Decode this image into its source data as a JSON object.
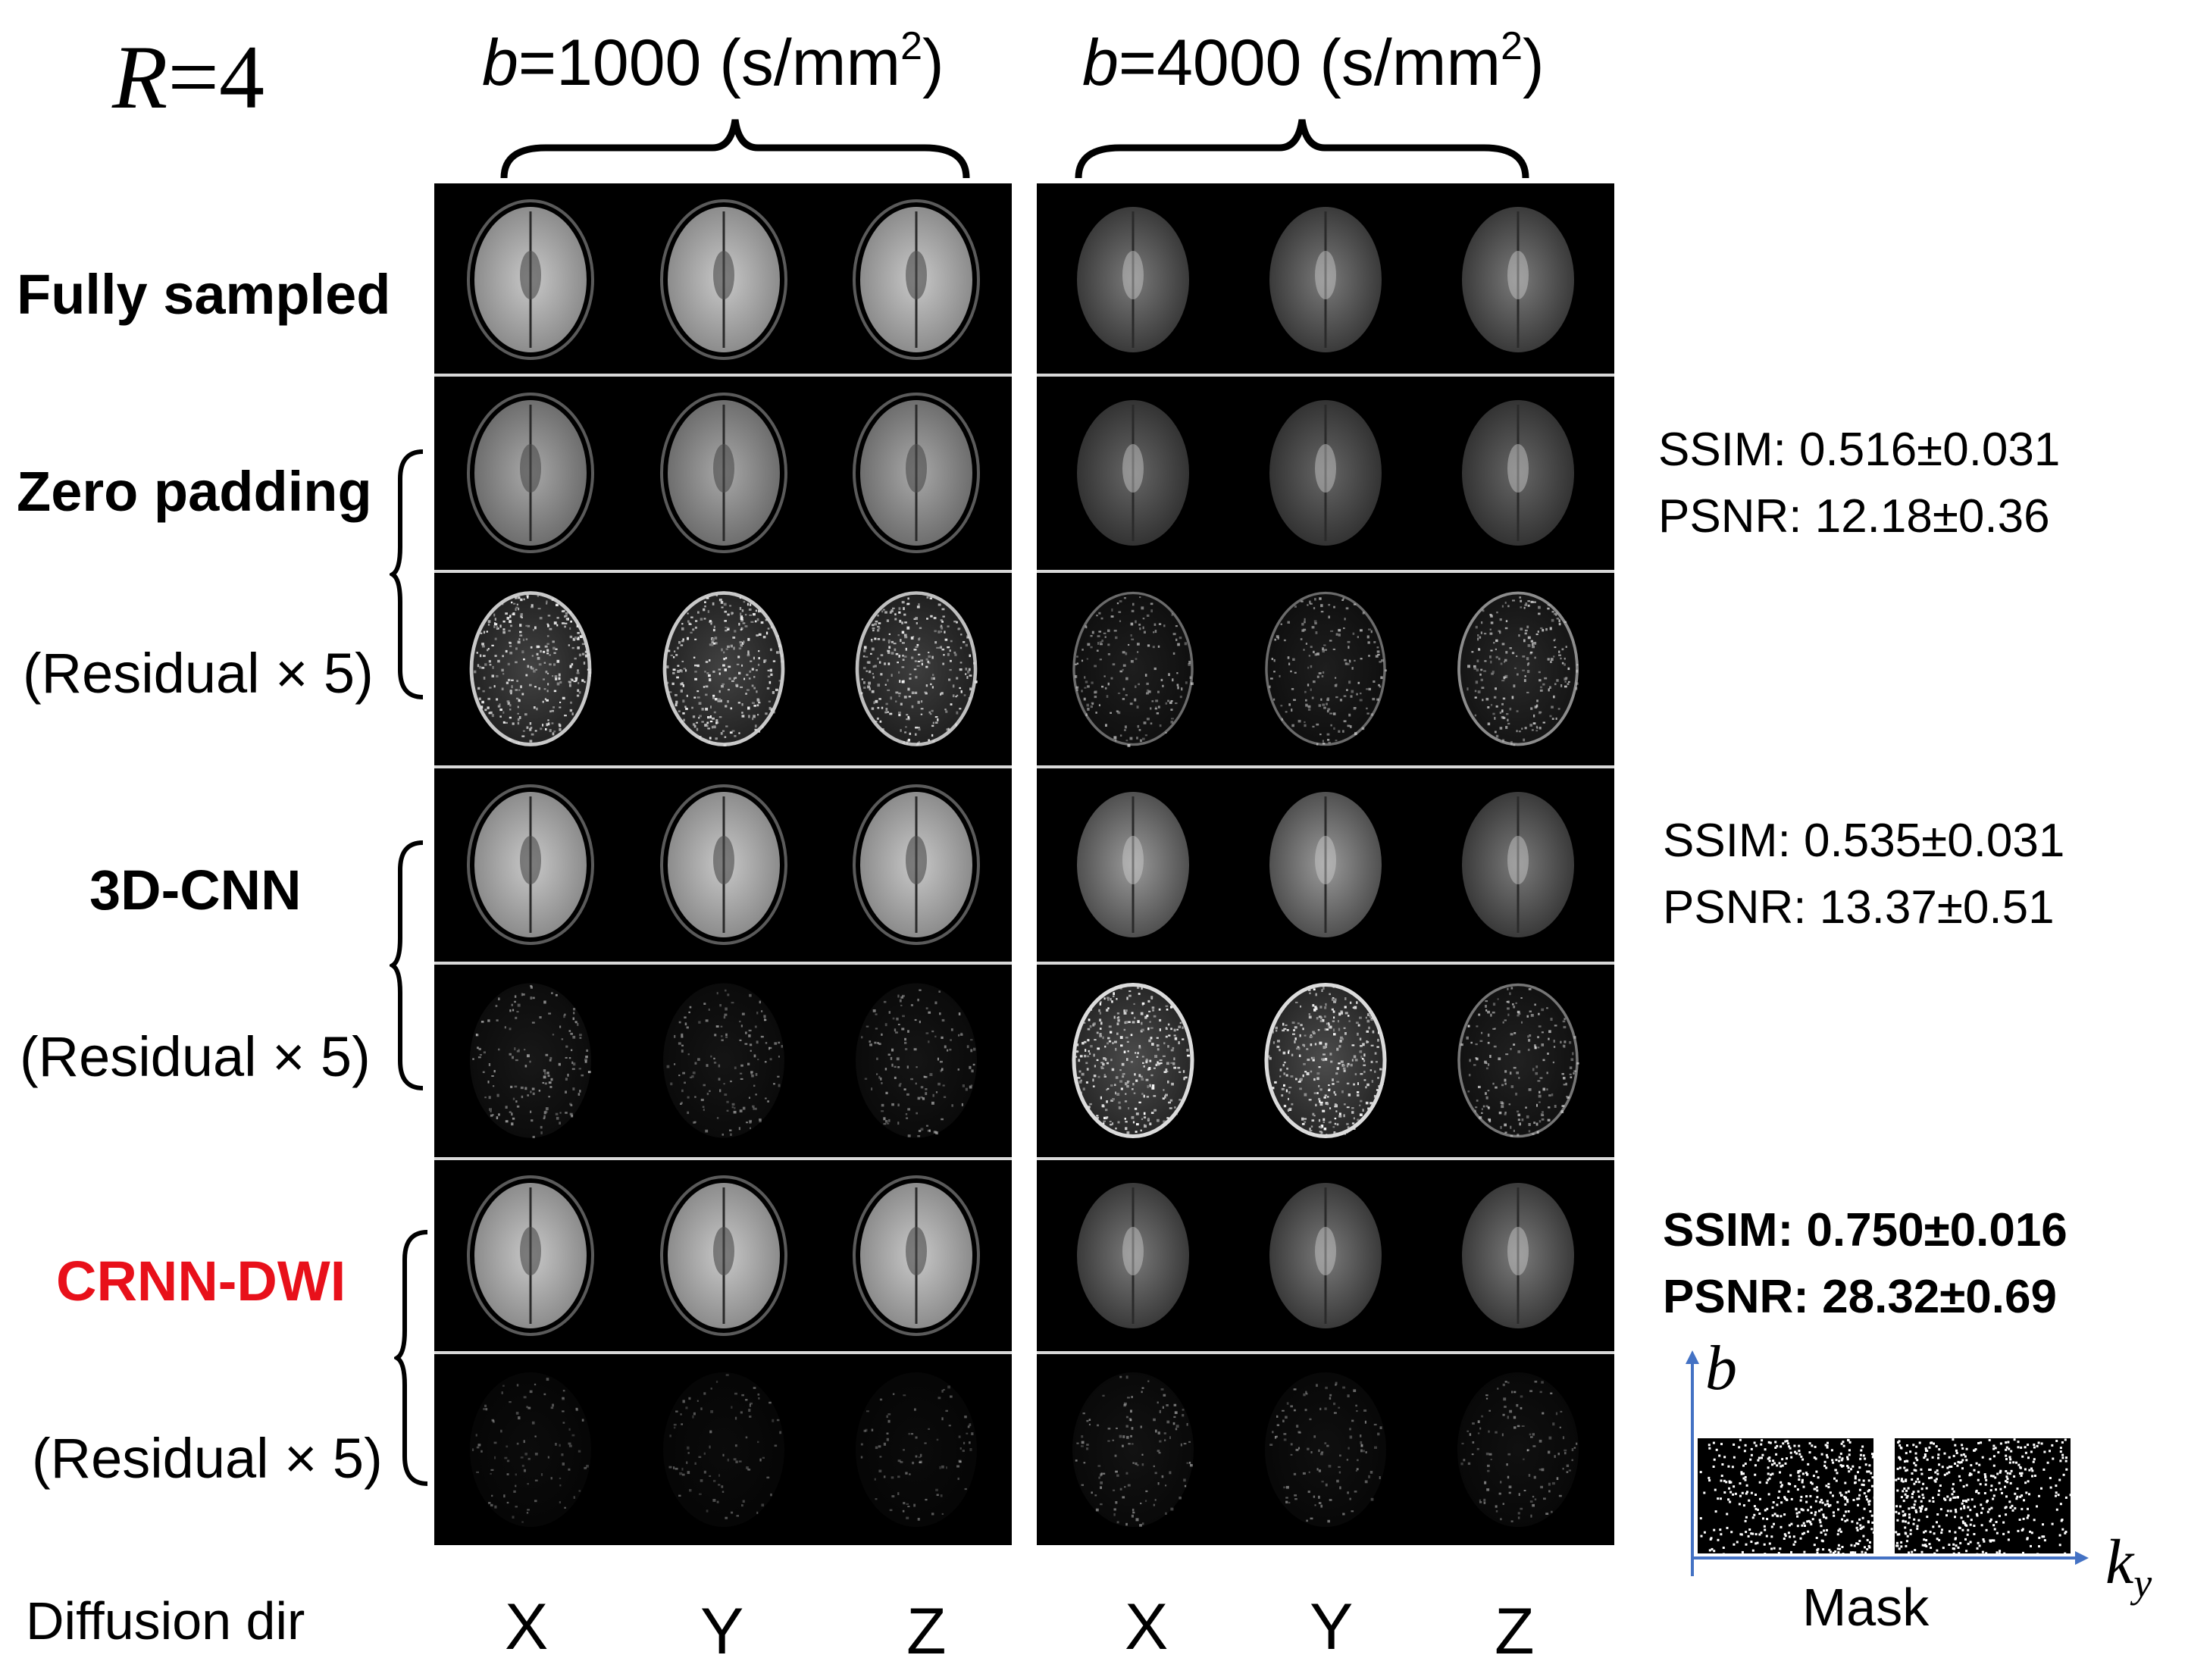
{
  "figure": {
    "acceleration_label": "R=4",
    "acceleration_symbol": "R",
    "acceleration_value": "=4",
    "columns": [
      {
        "b_symbol": "b",
        "b_text": "=1000 (s/mm",
        "b_sup": "2",
        "b_close": ")"
      },
      {
        "b_symbol": "b",
        "b_text": "=4000 (s/mm",
        "b_sup": "2",
        "b_close": ")"
      }
    ],
    "rows": {
      "fully_sampled": "Fully sampled",
      "zero_padding": "Zero padding",
      "cnn3d": "3D-CNN",
      "crnn": "CRNN-DWI",
      "residual": "(Residual × 5)"
    },
    "metrics": {
      "zero_padding": {
        "ssim": "SSIM: 0.516±0.031",
        "psnr": "PSNR: 12.18±0.36"
      },
      "cnn3d": {
        "ssim": "SSIM: 0.535±0.031",
        "psnr": "PSNR: 13.37±0.51"
      },
      "crnn": {
        "ssim": "SSIM: 0.750±0.016",
        "psnr": "PSNR: 28.32±0.69"
      }
    },
    "directions": {
      "title": "Diffusion dir",
      "labels": [
        "X",
        "Y",
        "Z",
        "X",
        "Y",
        "Z"
      ]
    },
    "mask": {
      "title": "Mask",
      "y_axis": "b",
      "x_axis_main": "k",
      "x_axis_sub": "y"
    },
    "colors": {
      "background": "#ffffff",
      "panel": "#000000",
      "highlight": "#e8101a",
      "axis": "#4472c4"
    }
  }
}
